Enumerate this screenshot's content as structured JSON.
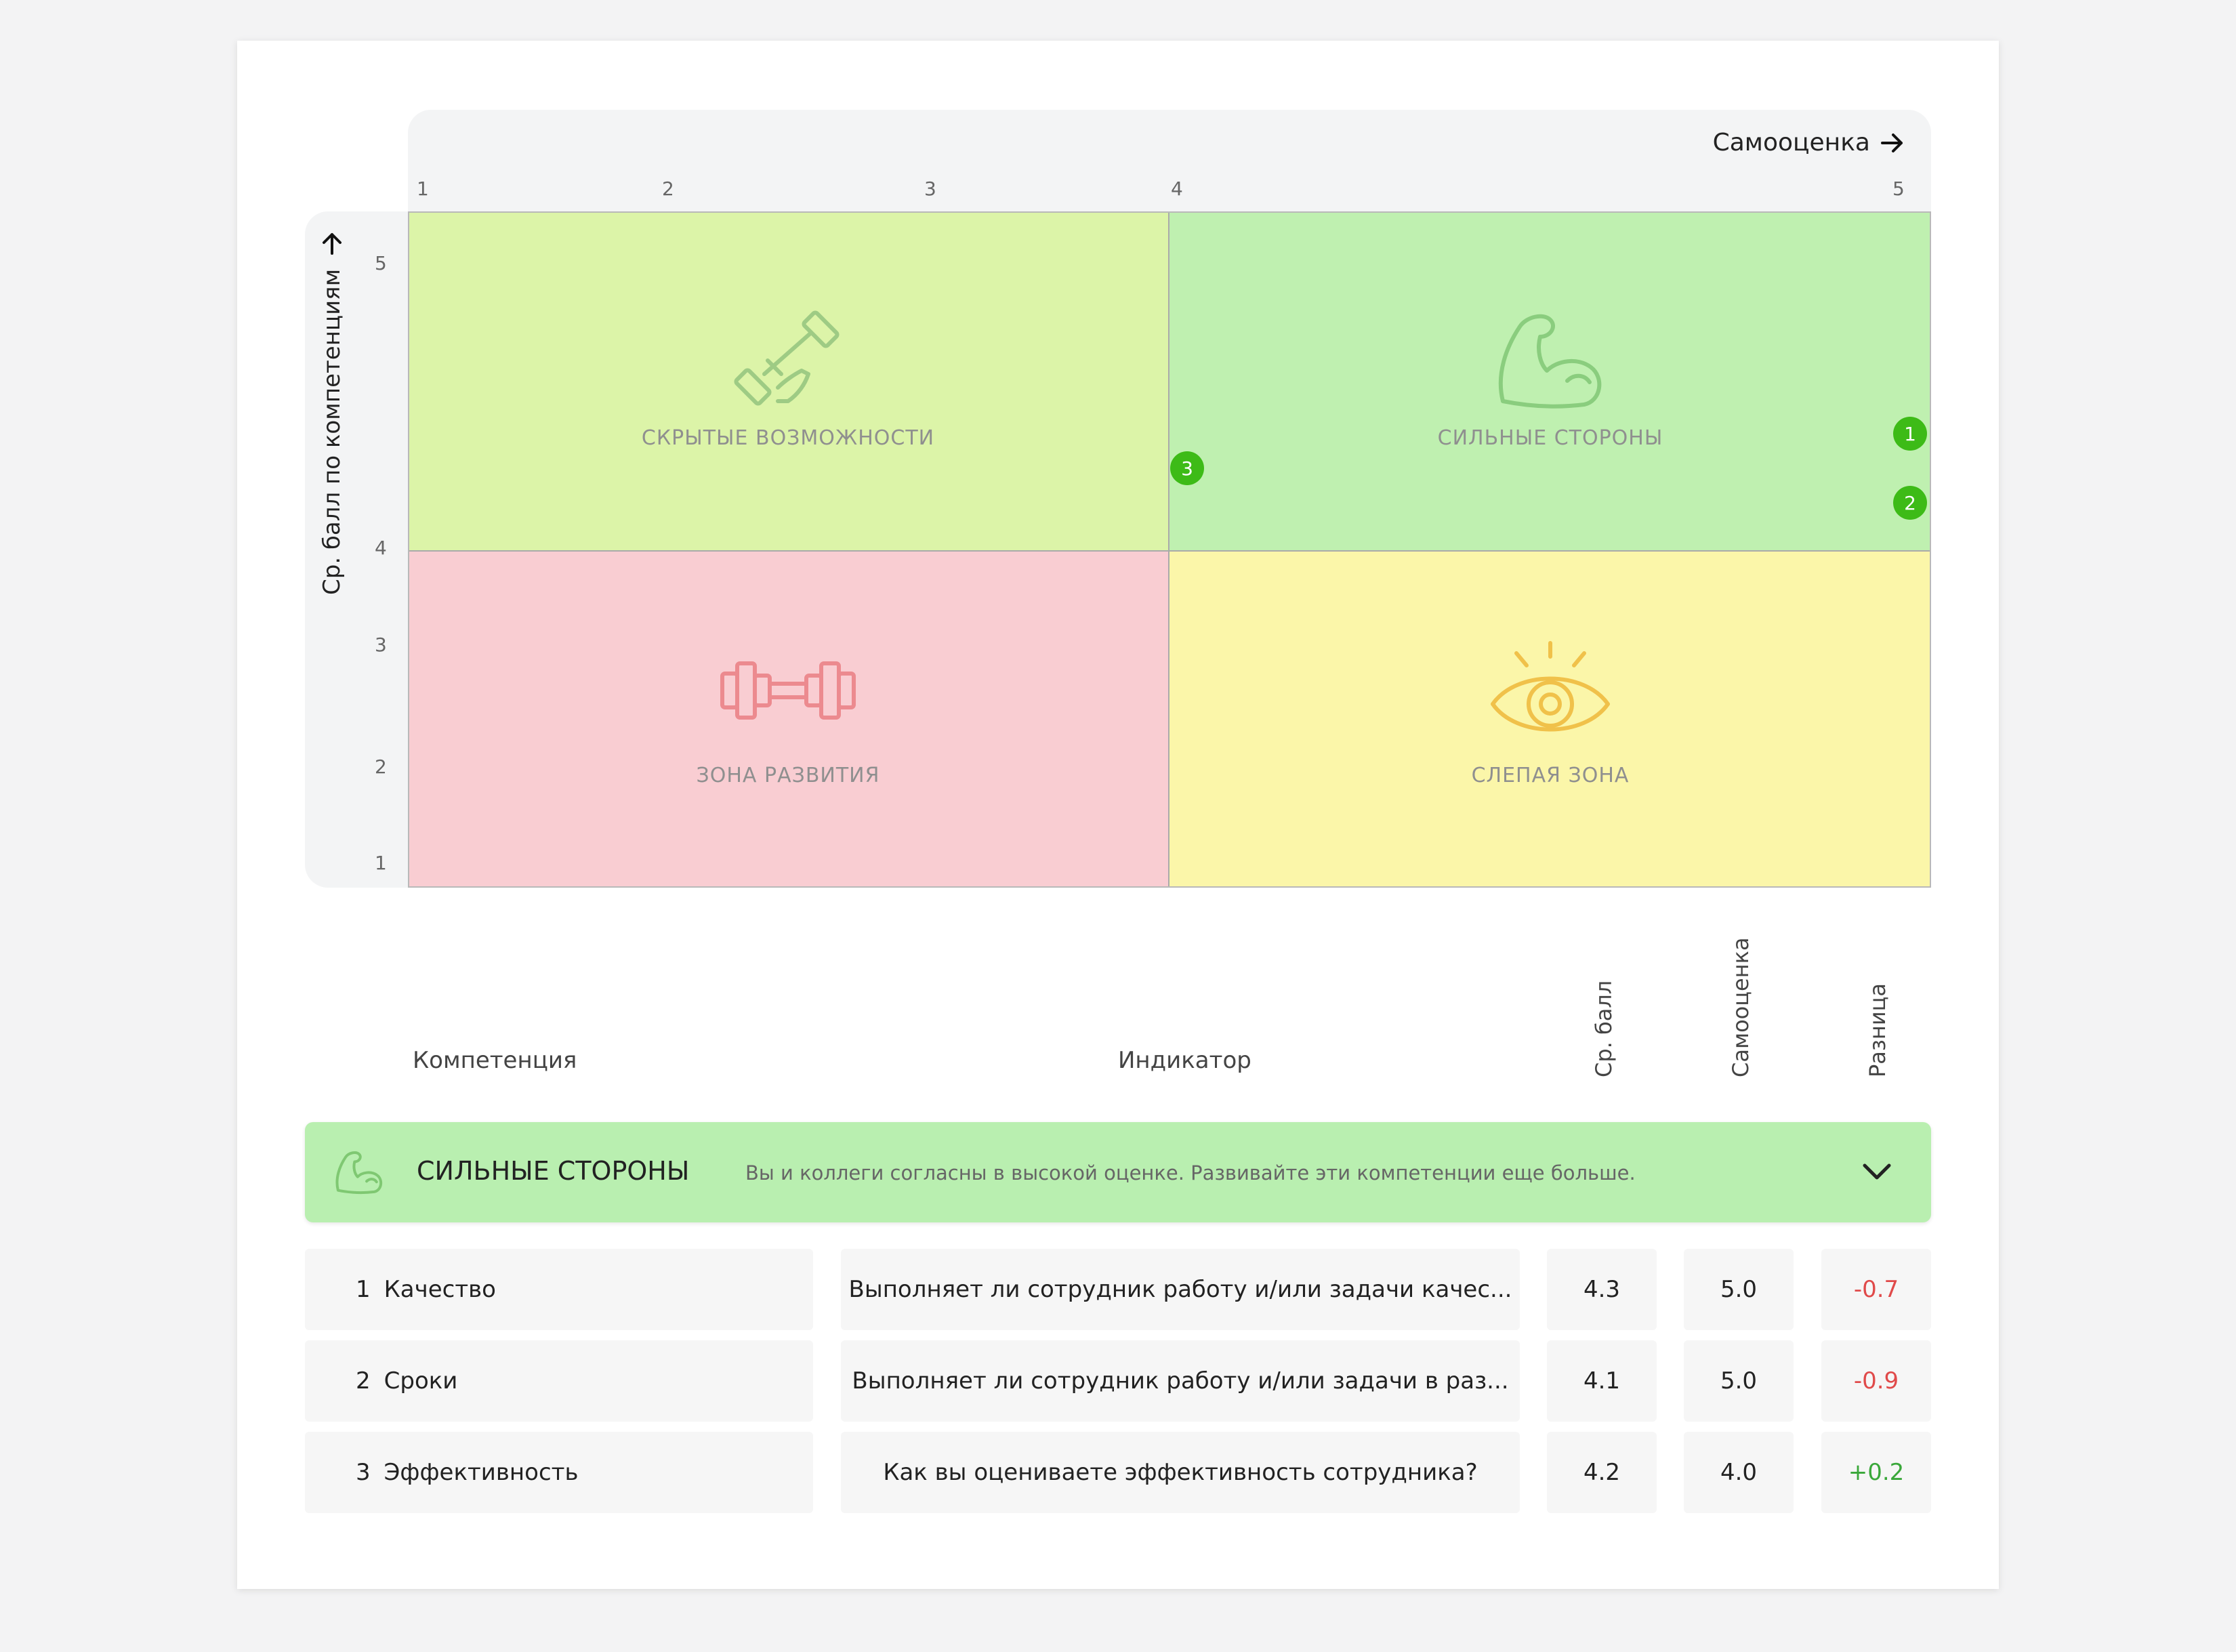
{
  "matrix": {
    "x_axis_title": "Самооценка",
    "y_axis_title": "Ср. балл по компетенциям",
    "x_ticks": [
      "1",
      "2",
      "3",
      "4",
      "5"
    ],
    "y_ticks": [
      "5",
      "4",
      "3",
      "2",
      "1"
    ],
    "quadrants": {
      "top_left": "СКРЫТЫЕ ВОЗМОЖНОСТИ",
      "top_right": "СИЛЬНЫЕ СТОРОНЫ",
      "bottom_left": "ЗОНА РАЗВИТИЯ",
      "bottom_right": "СЛЕПАЯ ЗОНА"
    },
    "points": [
      {
        "label": "1",
        "self_score": 5.0,
        "avg_score": 4.3
      },
      {
        "label": "2",
        "self_score": 5.0,
        "avg_score": 4.1
      },
      {
        "label": "3",
        "self_score": 4.0,
        "avg_score": 4.2
      }
    ],
    "colors": {
      "top_left": "#dcf4a8",
      "top_right": "#bff0b0",
      "bottom_left": "#f9cdd2",
      "bottom_right": "#fbf6a9",
      "point": "#3dbb17"
    }
  },
  "table": {
    "headers": {
      "competency": "Компетенция",
      "indicator": "Индикатор",
      "avg": "Ср. балл",
      "self": "Самооценка",
      "diff": "Разница"
    },
    "group": {
      "title": "СИЛЬНЫЕ СТОРОНЫ",
      "description": "Вы и коллеги согласны в высокой оценке. Развивайте эти компетенции еще больше.",
      "icon": "bicep-icon",
      "toggle_icon": "chevron-down-icon"
    },
    "rows": [
      {
        "num": "1",
        "competency": "Качество",
        "indicator": "Выполняет ли сотрудник работу и/или задачи качес...",
        "avg": "4.3",
        "self": "5.0",
        "diff": "-0.7"
      },
      {
        "num": "2",
        "competency": "Сроки",
        "indicator": "Выполняет ли сотрудник работу и/или задачи в раз...",
        "avg": "4.1",
        "self": "5.0",
        "diff": "-0.9"
      },
      {
        "num": "3",
        "competency": "Эффективность",
        "indicator": "Как вы оцениваете эффективность сотрудника?",
        "avg": "4.2",
        "self": "4.0",
        "diff": "+0.2"
      }
    ]
  }
}
